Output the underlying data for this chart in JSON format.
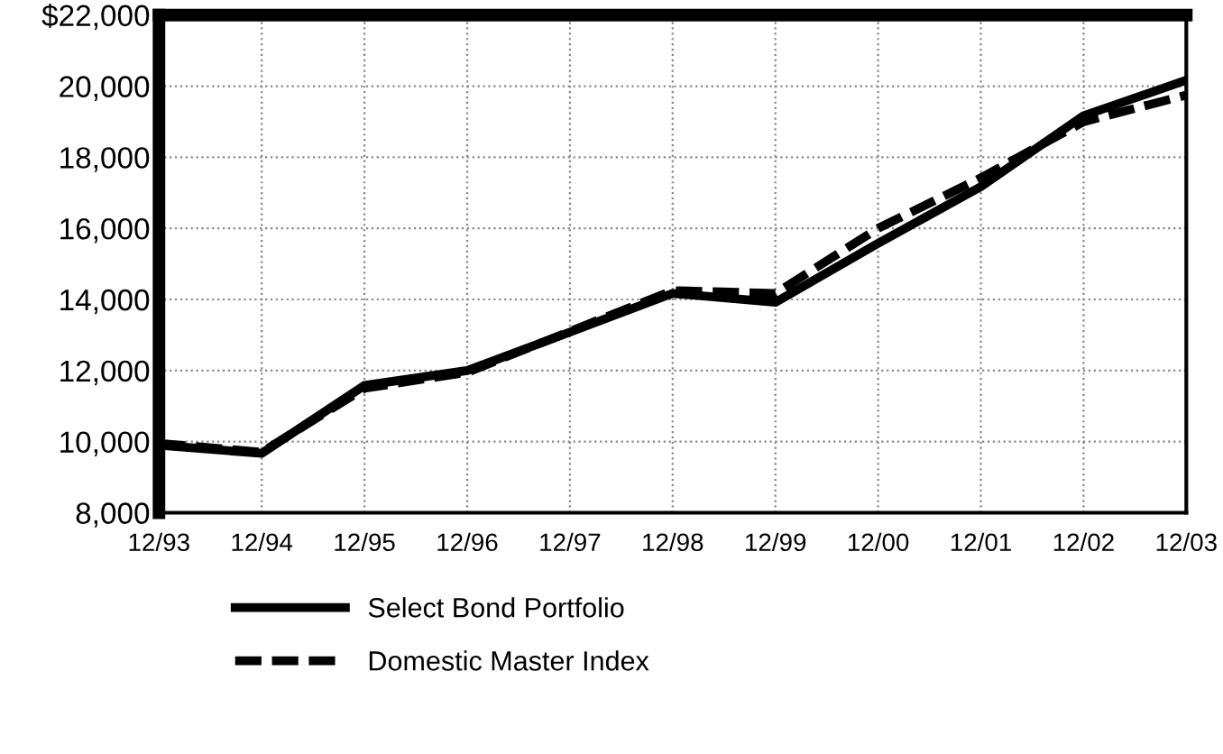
{
  "chart_data": {
    "type": "line",
    "categories": [
      "12/93",
      "12/94",
      "12/95",
      "12/96",
      "12/97",
      "12/98",
      "12/99",
      "12/00",
      "12/01",
      "12/02",
      "12/03"
    ],
    "series": [
      {
        "name": "Select Bond Portfolio",
        "color": "#000000",
        "line_style": "solid",
        "values": [
          9900,
          9670,
          11580,
          12000,
          13080,
          14170,
          13920,
          15580,
          17170,
          19170,
          20170
        ]
      },
      {
        "name": "Domestic Master Index",
        "color": "#000000",
        "line_style": "dashed",
        "values": [
          9950,
          9700,
          11500,
          11950,
          13100,
          14250,
          14170,
          16000,
          17420,
          19000,
          19750
        ]
      }
    ],
    "ylim": [
      8000,
      22000
    ],
    "yticks": [
      {
        "value": 8000,
        "label": "8,000"
      },
      {
        "value": 10000,
        "label": "10,000"
      },
      {
        "value": 12000,
        "label": "12,000"
      },
      {
        "value": 14000,
        "label": "14,000"
      },
      {
        "value": 16000,
        "label": "16,000"
      },
      {
        "value": 18000,
        "label": "18,000"
      },
      {
        "value": 20000,
        "label": "20,000"
      },
      {
        "value": 22000,
        "label": "$22,000"
      }
    ],
    "grid": true,
    "legend": "bottom",
    "marker": "none"
  }
}
